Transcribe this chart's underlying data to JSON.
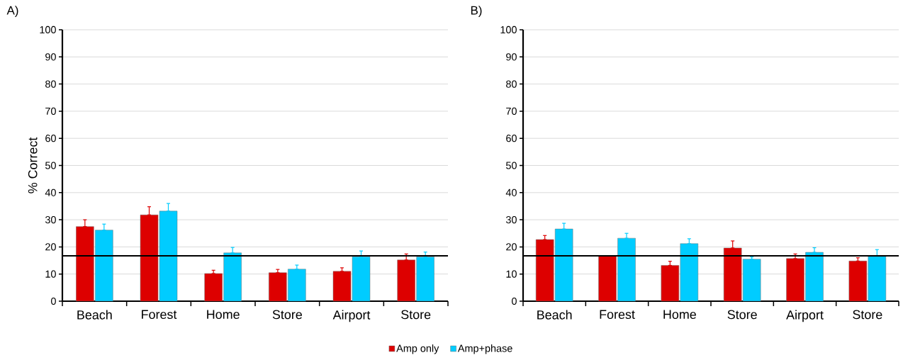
{
  "chart_data": [
    {
      "type": "bar",
      "title": "A)",
      "ylabel": "% Correct",
      "categories": [
        "Beach",
        "Forest",
        "Home",
        "Store",
        "Airport",
        "Store"
      ],
      "ylim": [
        0,
        100
      ],
      "yticks": [
        0,
        10,
        20,
        30,
        40,
        50,
        60,
        70,
        80,
        90,
        100
      ],
      "grid": "y",
      "legend": "bottom",
      "series": [
        {
          "name": "Amp only",
          "color": "#dd0000",
          "values": [
            27.5,
            31.8,
            10.2,
            10.5,
            11.0,
            15.2
          ],
          "errors": [
            [
              27.5,
              30
            ],
            [
              31.8,
              34.8
            ],
            [
              10.2,
              11.4
            ],
            [
              10.5,
              11.7
            ],
            [
              11.0,
              12.3
            ],
            [
              15.2,
              17.4
            ]
          ]
        },
        {
          "name": "Amp+phase",
          "color": "#00ccff",
          "values": [
            26.2,
            33.2,
            17.8,
            11.8,
            16.4,
            16.3
          ],
          "errors": [
            [
              26.2,
              28.4
            ],
            [
              33.2,
              36.0
            ],
            [
              17.8,
              19.8
            ],
            [
              11.8,
              13.3
            ],
            [
              16.4,
              18.5
            ],
            [
              16.3,
              18.1
            ]
          ]
        }
      ],
      "ref_lines": [
        {
          "axis": "y",
          "value": 16.7,
          "color": "#000000"
        }
      ]
    },
    {
      "type": "bar",
      "title": "B)",
      "categories": [
        "Beach",
        "Forest",
        "Home",
        "Store",
        "Airport",
        "Store"
      ],
      "ylim": [
        0,
        100
      ],
      "yticks": [
        0,
        10,
        20,
        30,
        40,
        50,
        60,
        70,
        80,
        90,
        100
      ],
      "grid": "y",
      "series": [
        {
          "color": "#dd0000",
          "values": [
            22.7,
            16.8,
            13.2,
            19.6,
            15.7,
            14.8
          ],
          "errors": [
            [
              22.7,
              24.2
            ],
            null,
            [
              13.2,
              14.7
            ],
            [
              19.6,
              22.2
            ],
            [
              15.7,
              17.4
            ],
            [
              14.8,
              16.0
            ]
          ]
        },
        {
          "color": "#00ccff",
          "values": [
            26.6,
            23.2,
            21.2,
            15.5,
            18.0,
            16.5
          ],
          "errors": [
            [
              26.6,
              28.7
            ],
            [
              23.2,
              25.0
            ],
            [
              21.2,
              23.0
            ],
            [
              15.5,
              16.3
            ],
            [
              18.0,
              19.7
            ],
            [
              16.5,
              19.0
            ]
          ]
        }
      ],
      "ref_lines": [
        {
          "axis": "y",
          "value": 16.7,
          "color": "#000000"
        }
      ]
    }
  ]
}
